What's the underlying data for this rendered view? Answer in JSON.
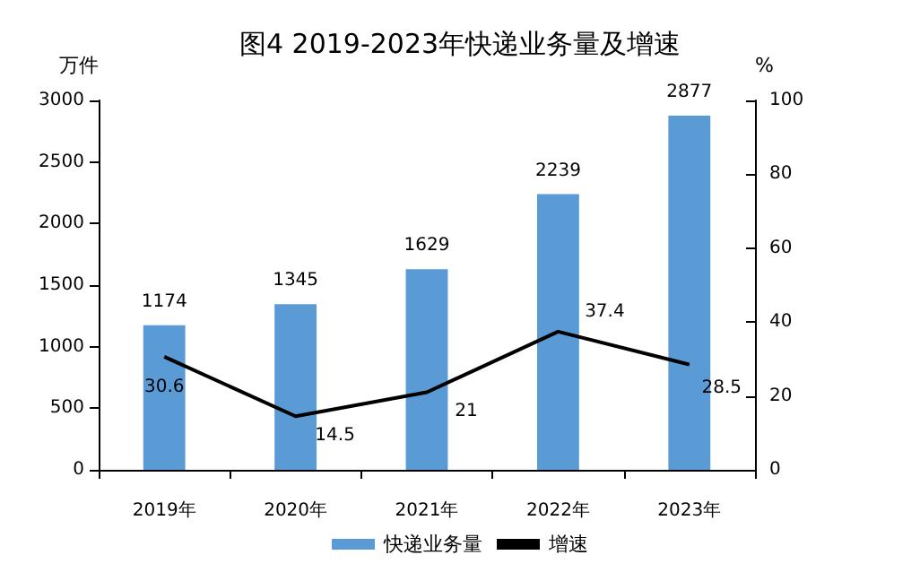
{
  "chart_data": {
    "type": "bar",
    "title": "图4 2019-2023年快递业务量及增速",
    "ylabel": "万件",
    "y2label": "%",
    "categories": [
      "2019年",
      "2020年",
      "2021年",
      "2022年",
      "2023年"
    ],
    "series": [
      {
        "name": "快递业务量",
        "color": "#5b9bd5",
        "values": [
          1174,
          1345,
          1629,
          2239,
          2877
        ]
      },
      {
        "name": "增速",
        "type": "line",
        "axis": "y2",
        "color": "#000000",
        "values": [
          30.6,
          14.5,
          21,
          37.4,
          28.5
        ]
      }
    ],
    "ylim": [
      0,
      3000
    ],
    "yticks": [
      0,
      500,
      1000,
      1500,
      2000,
      2500,
      3000
    ],
    "y2lim": [
      0,
      100
    ],
    "y2ticks": [
      0,
      20,
      40,
      60,
      80,
      100
    ],
    "data_labels": true,
    "grid": false,
    "legend": "bottom",
    "marker": "none",
    "line_style": "solid"
  }
}
